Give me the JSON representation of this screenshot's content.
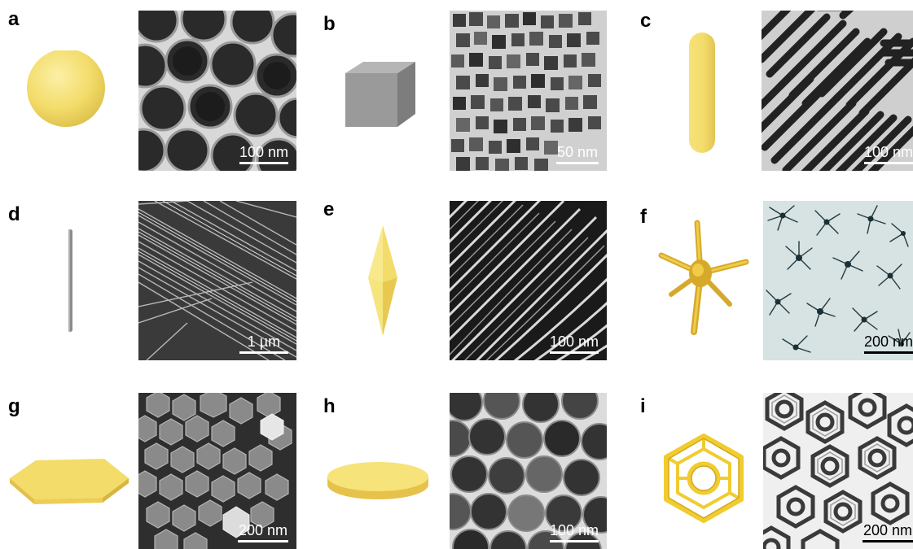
{
  "panels": [
    {
      "letter": "a",
      "model": "sphere-model",
      "scale_label": "100 nm",
      "scale_color": "#ffffff"
    },
    {
      "letter": "b",
      "model": "cube-model",
      "scale_label": "50 nm",
      "scale_color": "#ffffff"
    },
    {
      "letter": "c",
      "model": "rod-model",
      "scale_label": "100 nm",
      "scale_color": "#ffffff"
    },
    {
      "letter": "d",
      "model": "wire-model",
      "scale_label": "1 µm",
      "scale_color": "#ffffff"
    },
    {
      "letter": "e",
      "model": "bipyramid-model",
      "scale_label": "100 nm",
      "scale_color": "#ffffff"
    },
    {
      "letter": "f",
      "model": "branched-star-model",
      "scale_label": "200 nm",
      "scale_color": "#000000"
    },
    {
      "letter": "g",
      "model": "hexagonal-plate-model",
      "scale_label": "200 nm",
      "scale_color": "#ffffff"
    },
    {
      "letter": "h",
      "model": "circular-disk-model",
      "scale_label": "100 nm",
      "scale_color": "#ffffff"
    },
    {
      "letter": "i",
      "model": "hexagonal-ring-model",
      "scale_label": "200 nm",
      "scale_color": "#000000"
    }
  ],
  "colors": {
    "gold": "#f3dc6a",
    "gold_dark": "#e0b83a",
    "grey_model": "#8c8c8c"
  }
}
